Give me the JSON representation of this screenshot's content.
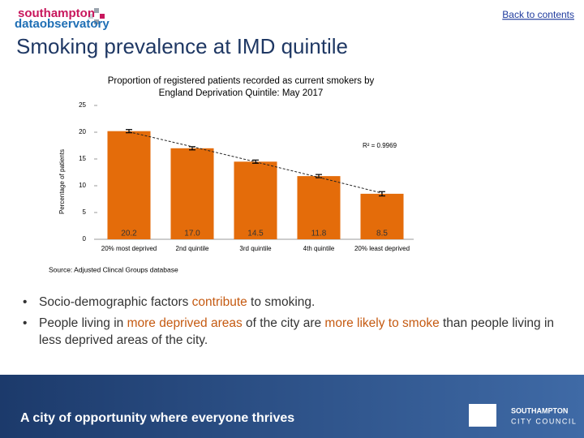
{
  "header": {
    "logo_line1": "southampton",
    "logo_line2": "dataobservatory",
    "link": "Back to contents",
    "title": "Smoking prevalence at IMD quintile"
  },
  "chart_data": {
    "type": "bar",
    "title": "Proportion of registered patients recorded as current smokers by England Deprivation Quintile: May 2017",
    "y_label": "Percentage of patients",
    "categories": [
      "20% most deprived",
      "2nd quintile",
      "3rd quintile",
      "4th quintile",
      "20% least deprived"
    ],
    "values": [
      20.2,
      17.0,
      14.5,
      11.8,
      8.5
    ],
    "value_labels": [
      "20.2",
      "17.0",
      "14.5",
      "11.8",
      "8.5"
    ],
    "errors": [
      0.3,
      0.3,
      0.3,
      0.3,
      0.4
    ],
    "color": "#e46c0a",
    "ylim": [
      0,
      25
    ],
    "yticks": [
      0,
      5,
      10,
      15,
      20,
      25
    ],
    "trendline": "polynomial",
    "trend_annotation": "R² = 0.9969",
    "source": "Source: Adjusted Clincal Groups database"
  },
  "bullets": [
    [
      "Socio-demographic factors ",
      {
        "text": "contribute",
        "color": "#c55a11"
      },
      " to smoking."
    ],
    [
      "People living in ",
      {
        "text": "more deprived areas",
        "color": "#c55a11"
      },
      " of the city are ",
      {
        "text": "more likely to smoke",
        "color": "#c55a11"
      },
      " than people living in less deprived areas of the city."
    ]
  ],
  "footer": {
    "tagline": "A city of opportunity where everyone thrives",
    "council_line1": "SOUTHAMPTON",
    "council_line2": "CITY COUNCIL"
  }
}
